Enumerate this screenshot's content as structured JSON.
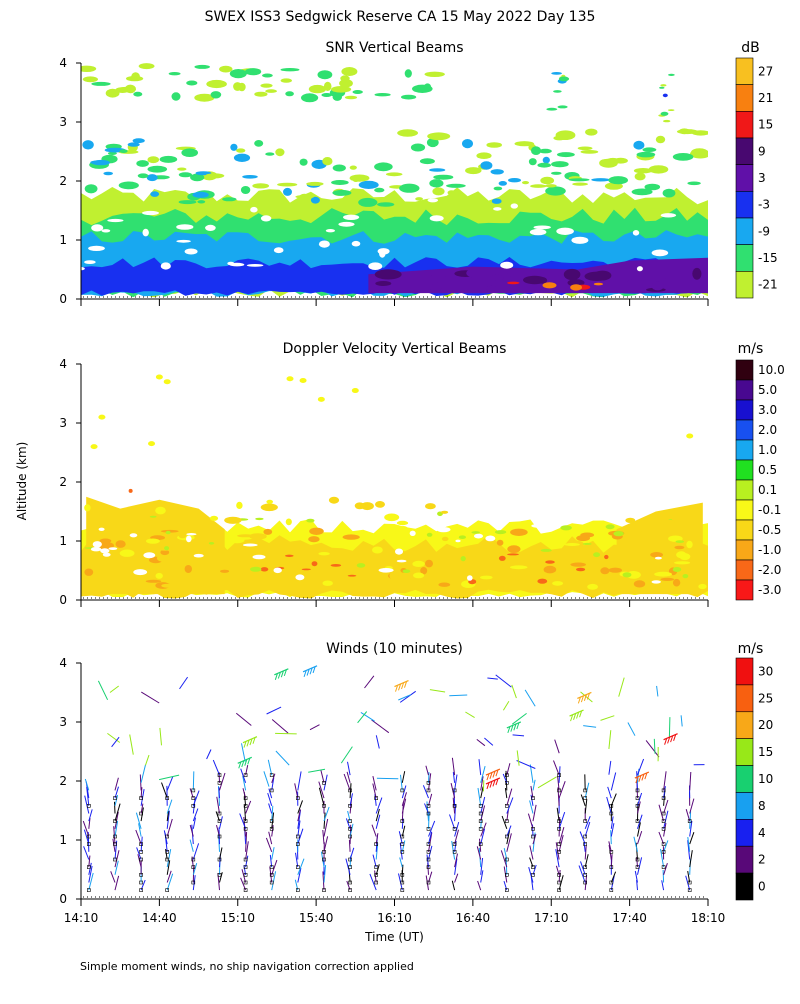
{
  "title": "SWEX ISS3 Sedgwick Reserve CA  15 May 2022 Day 135",
  "shared_ylabel": "Altitude (km)",
  "shared_xlabel": "Time (UT)",
  "footnote": "Simple moment winds, no ship navigation correction applied",
  "chart_data": [
    {
      "id": "snr",
      "type": "heatmap",
      "title": "SNR Vertical Beams",
      "ylabel": "Altitude (km)",
      "ylim": [
        0,
        4
      ],
      "yticks": [
        0,
        1,
        2,
        3,
        4
      ],
      "xlim_minutes": [
        850,
        1090
      ],
      "xticks": [
        "14:10",
        "14:40",
        "15:10",
        "15:40",
        "16:10",
        "16:40",
        "17:10",
        "17:40",
        "18:10"
      ],
      "xticks_labeled": false,
      "colorbar_unit": "dB",
      "colorbar_labels": [
        "27",
        "21",
        "15",
        "9",
        "3",
        "-3",
        "-9",
        "-15",
        "-21"
      ],
      "colorbar_colors": [
        "#f8c020",
        "#f88010",
        "#f01818",
        "#480870",
        "#6010a8",
        "#1830f0",
        "#18a8f0",
        "#30e070",
        "#c0f030"
      ]
    },
    {
      "id": "doppler",
      "type": "heatmap",
      "title": "Doppler Velocity Vertical Beams",
      "ylabel": "Altitude (km)",
      "ylim": [
        0,
        4
      ],
      "yticks": [
        0,
        1,
        2,
        3,
        4
      ],
      "xlim_minutes": [
        850,
        1090
      ],
      "xticks": [
        "14:10",
        "14:40",
        "15:10",
        "15:40",
        "16:10",
        "16:40",
        "17:10",
        "17:40",
        "18:10"
      ],
      "xticks_labeled": false,
      "colorbar_unit": "m/s",
      "colorbar_labels": [
        "10.0",
        "5.0",
        "3.0",
        "2.0",
        "1.0",
        "0.5",
        "0.1",
        "-0.1",
        "-0.5",
        "-1.0",
        "-2.0",
        "-3.0"
      ],
      "colorbar_colors": [
        "#300010",
        "#480890",
        "#1810d0",
        "#1850f0",
        "#18a8f0",
        "#20e020",
        "#b8f020",
        "#f8f818",
        "#f8d818",
        "#f8a818",
        "#f86818",
        "#f81818"
      ]
    },
    {
      "id": "winds",
      "type": "scatter",
      "title": "Winds (10 minutes)",
      "ylabel": "Altitude (km)",
      "xlabel": "Time (UT)",
      "ylim": [
        0,
        4
      ],
      "yticks": [
        0,
        1,
        2,
        3,
        4
      ],
      "xlim_minutes": [
        850,
        1090
      ],
      "xticks": [
        "14:10",
        "14:40",
        "15:10",
        "15:40",
        "16:10",
        "16:40",
        "17:10",
        "17:40",
        "18:10"
      ],
      "xticks_labeled": true,
      "colorbar_unit": "m/s",
      "colorbar_labels": [
        "30",
        "25",
        "20",
        "15",
        "10",
        "8",
        "4",
        "2",
        "0"
      ],
      "colorbar_colors": [
        "#f01010",
        "#f86010",
        "#f8a818",
        "#98e818",
        "#18d070",
        "#18a0f0",
        "#1820f0",
        "#580878",
        "#000000"
      ]
    }
  ]
}
